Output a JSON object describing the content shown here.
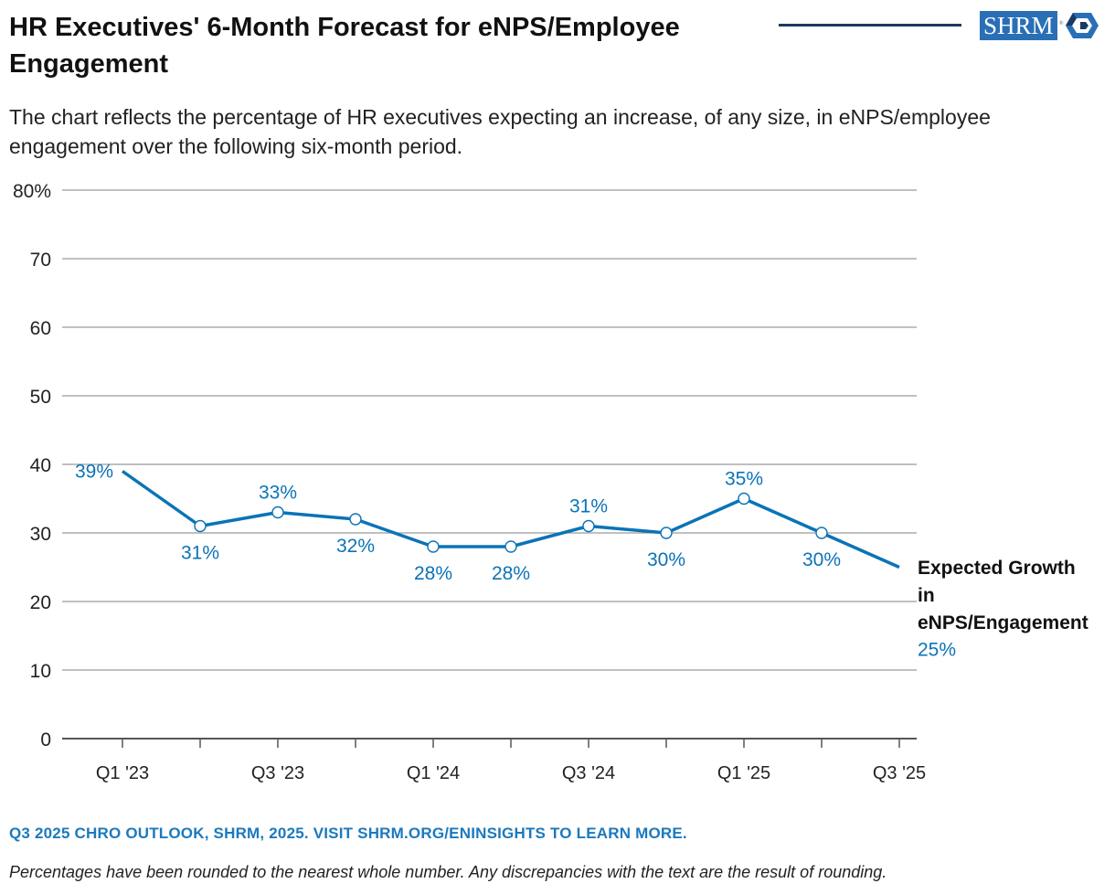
{
  "header": {
    "title": "HR Executives' 6-Month Forecast for eNPS/Employee Engagement",
    "subtitle": "The chart reflects the percentage of HR executives expecting an increase, of any size, in eNPS/employee engagement over the following six-month period.",
    "logo_text": "SHRM"
  },
  "colors": {
    "series": "#0b73b8",
    "grid": "#9a9a9a",
    "axis": "#555555",
    "text": "#111111",
    "rule": "#1b3a63",
    "logo": "#2a6fb5"
  },
  "chart_data": {
    "type": "line",
    "title": "HR Executives' 6-Month Forecast for eNPS/Employee Engagement",
    "x": [
      "Q1 '23",
      "Q2 '23",
      "Q3 '23",
      "Q4 '23",
      "Q1 '24",
      "Q2 '24",
      "Q3 '24",
      "Q4 '24",
      "Q1 '25",
      "Q2 '25",
      "Q3 '25"
    ],
    "x_tick_labels": [
      "Q1 '23",
      "",
      "Q3 '23",
      "",
      "Q1 '24",
      "",
      "Q3 '24",
      "",
      "Q1 '25",
      "",
      "Q3 '25"
    ],
    "series": [
      {
        "name": "Expected Growth in eNPS/Engagement",
        "name_lines": [
          "Expected Growth",
          "in",
          "eNPS/Engagement"
        ],
        "values": [
          39,
          31,
          33,
          32,
          28,
          28,
          31,
          30,
          35,
          30,
          25
        ],
        "labels": [
          "39%",
          "31%",
          "33%",
          "32%",
          "28%",
          "28%",
          "31%",
          "30%",
          "35%",
          "30%",
          "25%"
        ]
      }
    ],
    "y_ticks": [
      0,
      10,
      20,
      30,
      40,
      50,
      60,
      70,
      80
    ],
    "y_tick_labels": [
      "0",
      "10",
      "20",
      "30",
      "40",
      "50",
      "60",
      "70",
      "80%"
    ],
    "ylim": [
      0,
      80
    ],
    "grid": true,
    "xlabel": "",
    "ylabel": ""
  },
  "footer": {
    "source": "Q3 2025 CHRO OUTLOOK, SHRM, 2025. VISIT SHRM.ORG/ENINSIGHTS TO LEARN MORE.",
    "note": "Percentages have been rounded to the nearest whole number. Any discrepancies with the text are the result of rounding."
  }
}
